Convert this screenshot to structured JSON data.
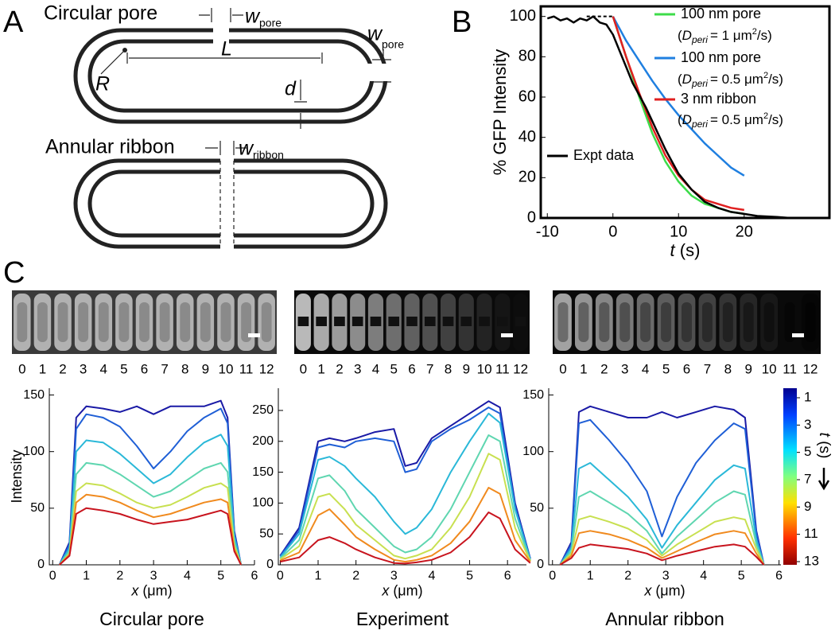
{
  "panel_a": {
    "letter": "A",
    "pore_title": "Circular pore",
    "w": "w",
    "pore_sub": "pore",
    "L": "L",
    "R": "R",
    "d": "d",
    "ribbon_title": "Annular ribbon",
    "ribbon_sub": "ribbon"
  },
  "panel_b": {
    "letter": "B"
  },
  "panel_c": {
    "letter": "C",
    "frame_labels": [
      "0",
      "1",
      "2",
      "3",
      "4",
      "5",
      "6",
      "7",
      "8",
      "9",
      "10",
      "11",
      "12"
    ]
  },
  "chart_data": [
    {
      "type": "line",
      "ylabel": "% GFP Intensity",
      "xlabel": [
        "t",
        " (s)"
      ],
      "xlim": [
        -11,
        33
      ],
      "ylim": [
        0,
        105
      ],
      "xticks": [
        -10,
        0,
        10,
        20
      ],
      "yticks": [
        0,
        20,
        40,
        60,
        80,
        100
      ],
      "reference_line": {
        "x": [
          -4,
          0
        ],
        "y": 100
      },
      "series": [
        {
          "name": "100 nm pore",
          "condition": [
            "(",
            "D",
            "peri",
            "= 1 μm",
            "2",
            "/s)"
          ],
          "color": "#3ddc4a",
          "x": [
            0,
            2,
            4,
            6,
            8,
            10,
            12,
            14,
            16,
            18,
            20
          ],
          "values": [
            100,
            80,
            60,
            42,
            28,
            18,
            11,
            7,
            5,
            3,
            2
          ]
        },
        {
          "name": "100 nm pore",
          "condition": [
            "(",
            "D",
            "peri",
            "= 0.5 μm",
            "2",
            "/s)"
          ],
          "color": "#1f7fe0",
          "x": [
            0,
            2,
            4,
            6,
            8,
            10,
            12,
            14,
            16,
            18,
            20
          ],
          "values": [
            100,
            88,
            78,
            68,
            59,
            51,
            44,
            37,
            31,
            25,
            21
          ]
        },
        {
          "name": "3 nm ribbon",
          "condition": [
            "(",
            "D",
            "peri",
            "= 0.5 μm",
            "2",
            "/s)"
          ],
          "color": "#e02020",
          "x": [
            0,
            2,
            4,
            6,
            8,
            10,
            12,
            14,
            16,
            18,
            20
          ],
          "values": [
            100,
            80,
            62,
            45,
            31,
            21,
            14,
            9,
            7,
            5,
            4
          ]
        },
        {
          "name": "Expt data",
          "color": "#000000",
          "x": [
            -10,
            -9,
            -8,
            -7,
            -6,
            -5,
            -4,
            -3,
            -2,
            -1,
            0,
            1,
            2,
            3,
            4,
            5,
            6,
            7,
            8,
            9,
            10,
            12,
            14,
            16,
            18,
            20,
            22,
            25,
            27
          ],
          "values": [
            99,
            100,
            98,
            99,
            97,
            99,
            98,
            100,
            97,
            96,
            91,
            83,
            75,
            67,
            61,
            55,
            48,
            41,
            34,
            28,
            22,
            14,
            8,
            5,
            3,
            2,
            1,
            0.5,
            0
          ]
        }
      ]
    },
    {
      "type": "line",
      "title": "Circular pore",
      "ylabel": "Intensity",
      "xlabel": [
        "x",
        " (μm)"
      ],
      "xlim": [
        -0.1,
        6
      ],
      "ylim": [
        0,
        156
      ],
      "xticks": [
        0,
        1,
        2,
        3,
        4,
        5,
        6
      ],
      "yticks": [
        0,
        50,
        100,
        150
      ],
      "x": [
        0.2,
        0.5,
        0.7,
        1,
        1.5,
        2,
        2.5,
        3,
        3.5,
        4,
        4.5,
        5,
        5.2,
        5.4,
        5.6
      ],
      "series": [
        {
          "color": "#1a1aa6",
          "values": [
            0,
            20,
            130,
            140,
            138,
            135,
            140,
            133,
            140,
            140,
            140,
            145,
            130,
            30,
            0
          ]
        },
        {
          "color": "#1f5fd6",
          "values": [
            0,
            18,
            120,
            133,
            130,
            122,
            105,
            85,
            100,
            118,
            130,
            138,
            125,
            28,
            0
          ]
        },
        {
          "color": "#2ab8d8",
          "values": [
            0,
            15,
            100,
            110,
            108,
            98,
            85,
            72,
            80,
            95,
            108,
            115,
            105,
            25,
            0
          ]
        },
        {
          "color": "#5fd6b0",
          "values": [
            0,
            12,
            80,
            90,
            88,
            80,
            70,
            60,
            65,
            75,
            85,
            90,
            82,
            20,
            0
          ]
        },
        {
          "color": "#c8e050",
          "values": [
            0,
            10,
            65,
            72,
            70,
            63,
            55,
            50,
            53,
            60,
            68,
            72,
            68,
            17,
            0
          ]
        },
        {
          "color": "#f08a1e",
          "values": [
            0,
            9,
            55,
            62,
            60,
            55,
            48,
            42,
            45,
            50,
            55,
            58,
            55,
            14,
            0
          ]
        },
        {
          "color": "#c8141e",
          "values": [
            0,
            8,
            45,
            50,
            48,
            45,
            40,
            36,
            38,
            40,
            44,
            48,
            45,
            12,
            0
          ]
        }
      ]
    },
    {
      "type": "line",
      "title": "Experiment",
      "xlabel": [
        "x",
        " (μm)"
      ],
      "xlim": [
        -0.05,
        6.5
      ],
      "ylim": [
        0,
        286
      ],
      "xticks": [
        0,
        1,
        2,
        3,
        4,
        5,
        6
      ],
      "yticks": [
        0,
        50,
        100,
        150,
        200,
        250
      ],
      "x": [
        0,
        0.5,
        1,
        1.3,
        1.7,
        2,
        2.5,
        3,
        3.3,
        3.6,
        4,
        4.5,
        5,
        5.5,
        5.8,
        6.2,
        6.6
      ],
      "series": [
        {
          "color": "#1a1aa6",
          "values": [
            15,
            60,
            200,
            205,
            200,
            205,
            215,
            220,
            160,
            165,
            205,
            225,
            245,
            265,
            255,
            100,
            10
          ]
        },
        {
          "color": "#1f5fd6",
          "values": [
            14,
            55,
            190,
            195,
            190,
            200,
            205,
            200,
            150,
            155,
            200,
            220,
            235,
            255,
            245,
            95,
            10
          ]
        },
        {
          "color": "#2ab8d8",
          "values": [
            12,
            50,
            170,
            175,
            160,
            140,
            110,
            70,
            50,
            60,
            90,
            150,
            200,
            245,
            230,
            90,
            8
          ]
        },
        {
          "color": "#5fd6b0",
          "values": [
            10,
            40,
            140,
            145,
            120,
            90,
            60,
            30,
            20,
            25,
            45,
            90,
            150,
            210,
            200,
            75,
            7
          ]
        },
        {
          "color": "#c8e050",
          "values": [
            9,
            30,
            110,
            115,
            90,
            65,
            40,
            15,
            10,
            15,
            25,
            60,
            110,
            180,
            170,
            60,
            6
          ]
        },
        {
          "color": "#f08a1e",
          "values": [
            7,
            20,
            80,
            90,
            65,
            45,
            25,
            8,
            5,
            8,
            15,
            35,
            70,
            125,
            115,
            40,
            5
          ]
        },
        {
          "color": "#c8141e",
          "values": [
            5,
            12,
            40,
            45,
            35,
            25,
            12,
            3,
            2,
            4,
            8,
            20,
            45,
            85,
            75,
            25,
            3
          ]
        }
      ]
    },
    {
      "type": "line",
      "title": "Annular ribbon",
      "xlabel": [
        "x",
        " (μm)"
      ],
      "xlim": [
        -0.1,
        6.05
      ],
      "ylim": [
        0,
        156
      ],
      "xticks": [
        0,
        1,
        2,
        3,
        4,
        5,
        6
      ],
      "yticks": [
        0,
        50,
        100,
        150
      ],
      "x": [
        0.2,
        0.5,
        0.7,
        1,
        1.5,
        2,
        2.5,
        2.9,
        3.3,
        3.8,
        4.3,
        4.8,
        5.1,
        5.4,
        5.6
      ],
      "series": [
        {
          "color": "#1a1aa6",
          "values": [
            0,
            20,
            135,
            140,
            135,
            130,
            130,
            135,
            130,
            135,
            140,
            137,
            130,
            30,
            0
          ]
        },
        {
          "color": "#1f5fd6",
          "values": [
            0,
            18,
            125,
            128,
            110,
            90,
            65,
            25,
            60,
            90,
            110,
            125,
            120,
            28,
            0
          ]
        },
        {
          "color": "#2ab8d8",
          "values": [
            0,
            15,
            85,
            90,
            75,
            60,
            40,
            15,
            35,
            55,
            75,
            88,
            85,
            22,
            0
          ]
        },
        {
          "color": "#5fd6b0",
          "values": [
            0,
            12,
            60,
            65,
            55,
            45,
            30,
            10,
            25,
            40,
            55,
            65,
            62,
            18,
            0
          ]
        },
        {
          "color": "#c8e050",
          "values": [
            0,
            10,
            40,
            43,
            38,
            32,
            22,
            8,
            18,
            28,
            38,
            42,
            40,
            14,
            0
          ]
        },
        {
          "color": "#f08a1e",
          "values": [
            0,
            8,
            28,
            30,
            27,
            22,
            15,
            6,
            12,
            20,
            27,
            30,
            28,
            10,
            0
          ]
        },
        {
          "color": "#c8141e",
          "values": [
            0,
            6,
            15,
            18,
            16,
            14,
            10,
            4,
            8,
            12,
            16,
            18,
            16,
            7,
            0
          ]
        }
      ],
      "colorbar": {
        "ticks": [
          1,
          3,
          5,
          7,
          9,
          11,
          13
        ],
        "range": [
          1,
          13
        ],
        "label": [
          "t",
          " (s)"
        ]
      }
    }
  ]
}
